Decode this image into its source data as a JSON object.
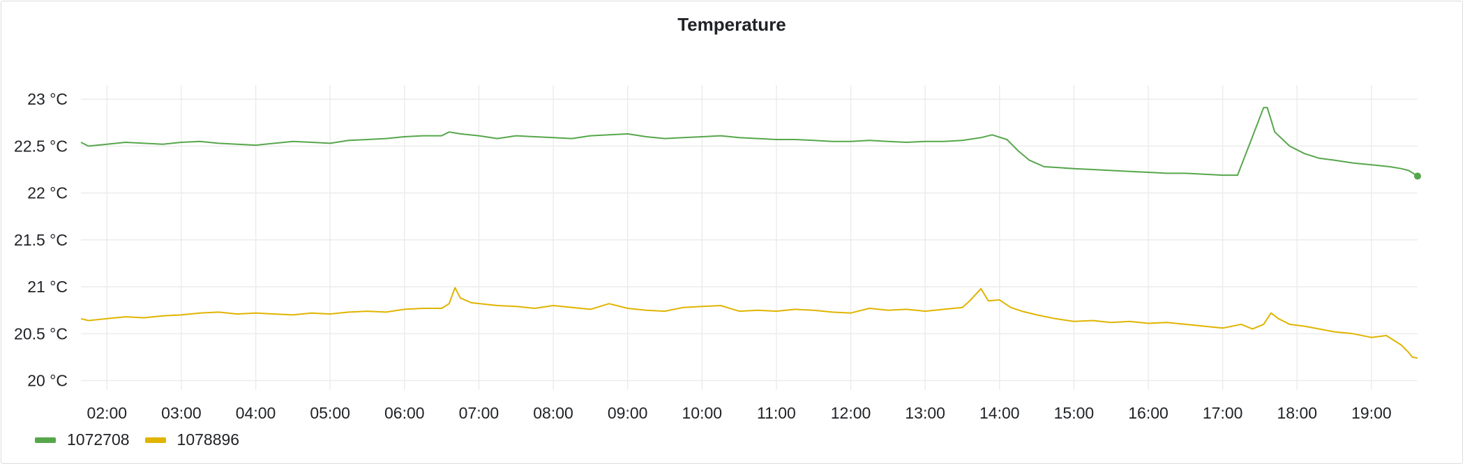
{
  "panel": {
    "title": "Temperature"
  },
  "colors": {
    "series_a": "#56a64b",
    "series_b": "#e0b400",
    "grid": "#ececec"
  },
  "chart_data": {
    "type": "line",
    "title": "Temperature",
    "xlabel": "",
    "ylabel": "",
    "x_unit": "hours",
    "xlim": [
      1.65,
      19.62
    ],
    "ylim": [
      19.9,
      23.15
    ],
    "y_ticks": [
      20,
      20.5,
      21,
      21.5,
      22,
      22.5,
      23
    ],
    "y_tick_labels": [
      "20 °C",
      "20.5 °C",
      "21 °C",
      "21.5 °C",
      "22 °C",
      "22.5 °C",
      "23 °C"
    ],
    "x_ticks": [
      2,
      3,
      4,
      5,
      6,
      7,
      8,
      9,
      10,
      11,
      12,
      13,
      14,
      15,
      16,
      17,
      18,
      19
    ],
    "x_tick_labels": [
      "02:00",
      "03:00",
      "04:00",
      "05:00",
      "06:00",
      "07:00",
      "08:00",
      "09:00",
      "10:00",
      "11:00",
      "12:00",
      "13:00",
      "14:00",
      "15:00",
      "16:00",
      "17:00",
      "18:00",
      "19:00"
    ],
    "grid": true,
    "legend_position": "bottom-left",
    "series": [
      {
        "name": "1072708",
        "color": "#56a64b",
        "x": [
          1.65,
          1.75,
          2.0,
          2.25,
          2.5,
          2.75,
          3.0,
          3.25,
          3.5,
          3.75,
          4.0,
          4.25,
          4.5,
          4.75,
          5.0,
          5.25,
          5.5,
          5.75,
          6.0,
          6.25,
          6.5,
          6.6,
          6.75,
          7.0,
          7.25,
          7.5,
          7.75,
          8.0,
          8.25,
          8.5,
          8.75,
          9.0,
          9.25,
          9.5,
          9.75,
          10.0,
          10.25,
          10.5,
          10.75,
          11.0,
          11.25,
          11.5,
          11.75,
          12.0,
          12.25,
          12.5,
          12.75,
          13.0,
          13.25,
          13.5,
          13.75,
          13.9,
          14.1,
          14.25,
          14.4,
          14.6,
          14.8,
          15.0,
          15.25,
          15.5,
          15.75,
          16.0,
          16.25,
          16.5,
          16.75,
          17.0,
          17.2,
          17.4,
          17.55,
          17.6,
          17.7,
          17.9,
          18.1,
          18.3,
          18.5,
          18.75,
          19.0,
          19.25,
          19.4,
          19.5,
          19.62
        ],
        "y": [
          22.54,
          22.5,
          22.52,
          22.54,
          22.53,
          22.52,
          22.54,
          22.55,
          22.53,
          22.52,
          22.51,
          22.53,
          22.55,
          22.54,
          22.53,
          22.56,
          22.57,
          22.58,
          22.6,
          22.61,
          22.61,
          22.65,
          22.63,
          22.61,
          22.58,
          22.61,
          22.6,
          22.59,
          22.58,
          22.61,
          22.62,
          22.63,
          22.6,
          22.58,
          22.59,
          22.6,
          22.61,
          22.59,
          22.58,
          22.57,
          22.57,
          22.56,
          22.55,
          22.55,
          22.56,
          22.55,
          22.54,
          22.55,
          22.55,
          22.56,
          22.59,
          22.62,
          22.57,
          22.45,
          22.35,
          22.28,
          22.27,
          22.26,
          22.25,
          22.24,
          22.23,
          22.22,
          22.21,
          22.21,
          22.2,
          22.19,
          22.19,
          22.6,
          22.91,
          22.91,
          22.65,
          22.5,
          22.42,
          22.37,
          22.35,
          22.32,
          22.3,
          22.28,
          22.26,
          22.24,
          22.18
        ]
      },
      {
        "name": "1078896",
        "color": "#e0b400",
        "x": [
          1.65,
          1.75,
          2.0,
          2.25,
          2.5,
          2.75,
          3.0,
          3.25,
          3.5,
          3.75,
          4.0,
          4.25,
          4.5,
          4.75,
          5.0,
          5.25,
          5.5,
          5.75,
          6.0,
          6.25,
          6.5,
          6.6,
          6.68,
          6.75,
          6.9,
          7.25,
          7.5,
          7.75,
          8.0,
          8.25,
          8.5,
          8.75,
          9.0,
          9.25,
          9.5,
          9.75,
          10.0,
          10.25,
          10.5,
          10.75,
          11.0,
          11.25,
          11.5,
          11.75,
          12.0,
          12.25,
          12.5,
          12.75,
          13.0,
          13.25,
          13.5,
          13.6,
          13.75,
          13.85,
          14.0,
          14.15,
          14.3,
          14.5,
          14.75,
          15.0,
          15.25,
          15.5,
          15.75,
          16.0,
          16.25,
          16.5,
          16.75,
          17.0,
          17.25,
          17.4,
          17.55,
          17.65,
          17.75,
          17.9,
          18.1,
          18.3,
          18.5,
          18.75,
          19.0,
          19.2,
          19.4,
          19.5,
          19.55,
          19.62
        ],
        "y": [
          20.66,
          20.64,
          20.66,
          20.68,
          20.67,
          20.69,
          20.7,
          20.72,
          20.73,
          20.71,
          20.72,
          20.71,
          20.7,
          20.72,
          20.71,
          20.73,
          20.74,
          20.73,
          20.76,
          20.77,
          20.77,
          20.82,
          20.99,
          20.88,
          20.83,
          20.8,
          20.79,
          20.77,
          20.8,
          20.78,
          20.76,
          20.82,
          20.77,
          20.75,
          20.74,
          20.78,
          20.79,
          20.8,
          20.74,
          20.75,
          20.74,
          20.76,
          20.75,
          20.73,
          20.72,
          20.77,
          20.75,
          20.76,
          20.74,
          20.76,
          20.78,
          20.85,
          20.98,
          20.85,
          20.86,
          20.78,
          20.74,
          20.7,
          20.66,
          20.63,
          20.64,
          20.62,
          20.63,
          20.61,
          20.62,
          20.6,
          20.58,
          20.56,
          20.6,
          20.55,
          20.6,
          20.72,
          20.66,
          20.6,
          20.58,
          20.55,
          20.52,
          20.5,
          20.46,
          20.48,
          20.38,
          20.3,
          20.25,
          20.24
        ]
      }
    ]
  }
}
